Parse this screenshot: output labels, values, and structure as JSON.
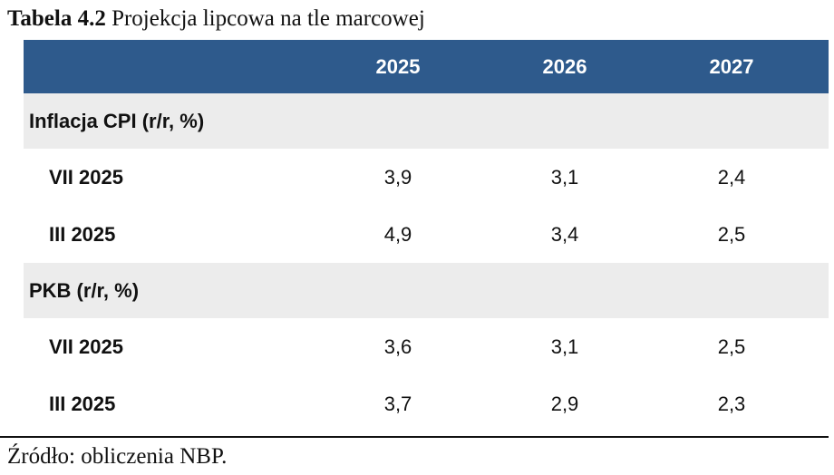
{
  "title": {
    "label": "Tabela 4.2",
    "text": "Projekcja lipcowa na tle marcowej"
  },
  "table": {
    "columns": [
      "2025",
      "2026",
      "2027"
    ],
    "sections": [
      {
        "label": "Inflacja CPI (r/r, %)",
        "rows": [
          {
            "label": "VII 2025",
            "values": [
              "3,9",
              "3,1",
              "2,4"
            ]
          },
          {
            "label": "III 2025",
            "values": [
              "4,9",
              "3,4",
              "2,5"
            ]
          }
        ]
      },
      {
        "label": "PKB (r/r, %)",
        "rows": [
          {
            "label": "VII 2025",
            "values": [
              "3,6",
              "3,1",
              "2,5"
            ]
          },
          {
            "label": "III 2025",
            "values": [
              "3,7",
              "2,9",
              "2,3"
            ]
          }
        ]
      }
    ]
  },
  "source": "Źródło: obliczenia NBP.",
  "colors": {
    "header_background": "#2e5a8c",
    "section_background": "#ececec"
  }
}
